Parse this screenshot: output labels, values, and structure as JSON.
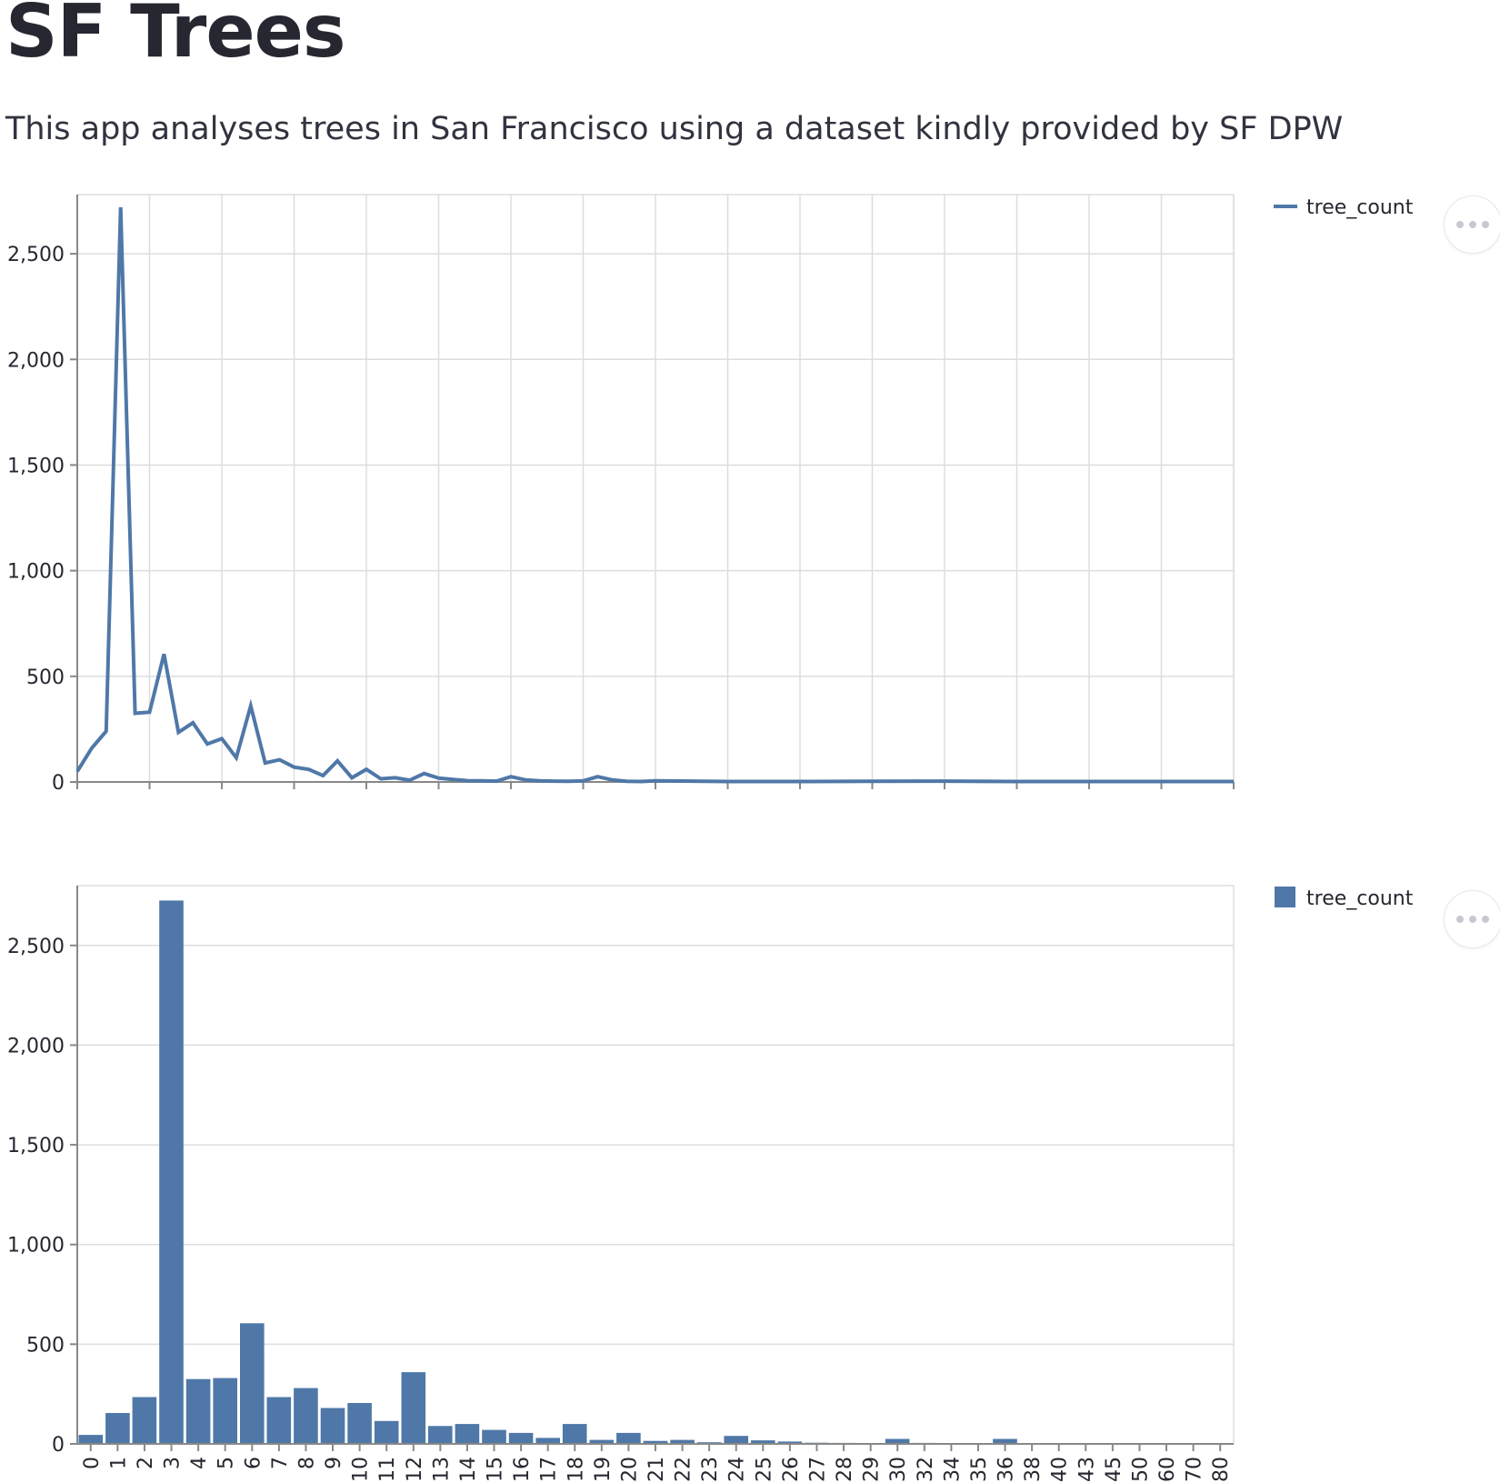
{
  "page": {
    "title": "SF Trees",
    "subtitle": "This app analyses trees in San Francisco using a dataset kindly provided by SF DPW",
    "menu_icon": "ellipsis-icon"
  },
  "colors": {
    "series": "#4f78a8",
    "grid": "#dddddd",
    "axis": "#888888",
    "text": "#262730"
  },
  "chart_data": [
    {
      "type": "line",
      "series": [
        {
          "name": "tree_count",
          "x": [
            0,
            1,
            2,
            3,
            4,
            5,
            6,
            7,
            8,
            9,
            10,
            11,
            12,
            13,
            14,
            15,
            16,
            17,
            18,
            19,
            20,
            21,
            22,
            23,
            24,
            25,
            26,
            27,
            28,
            29,
            30,
            31,
            32,
            33,
            34,
            35,
            36,
            37,
            38,
            39,
            40,
            45,
            50,
            55,
            60,
            65,
            70,
            75,
            80
          ],
          "values": [
            50,
            160,
            240,
            2720,
            325,
            330,
            605,
            235,
            280,
            180,
            205,
            115,
            360,
            90,
            105,
            70,
            60,
            30,
            100,
            20,
            60,
            15,
            20,
            8,
            40,
            18,
            12,
            6,
            5,
            4,
            25,
            10,
            5,
            4,
            3,
            5,
            25,
            10,
            3,
            2,
            5,
            2,
            2,
            3,
            4,
            2,
            2,
            2,
            2
          ]
        }
      ],
      "xlim": [
        0,
        80
      ],
      "ylim": [
        0,
        2780
      ],
      "x_ticks": [
        0,
        5,
        10,
        15,
        20,
        25,
        30,
        35,
        40,
        45,
        50,
        55,
        60,
        65,
        70,
        75,
        80
      ],
      "y_ticks": [
        0,
        500,
        1000,
        1500,
        2000,
        2500
      ],
      "y_tick_labels": [
        "0",
        "500",
        "1,000",
        "1,500",
        "2,000",
        "2,500"
      ],
      "grid": true,
      "legend": "top-right"
    },
    {
      "type": "bar",
      "categories": [
        "0",
        "1",
        "2",
        "3",
        "4",
        "5",
        "6",
        "7",
        "8",
        "9",
        "10",
        "11",
        "12",
        "13",
        "14",
        "15",
        "16",
        "17",
        "18",
        "19",
        "20",
        "21",
        "22",
        "23",
        "24",
        "25",
        "26",
        "27",
        "28",
        "29",
        "30",
        "32",
        "34",
        "35",
        "36",
        "38",
        "40",
        "43",
        "45",
        "50",
        "60",
        "70",
        "80"
      ],
      "series": [
        {
          "name": "tree_count",
          "values": [
            45,
            155,
            235,
            2725,
            325,
            330,
            605,
            235,
            280,
            180,
            205,
            115,
            360,
            90,
            100,
            70,
            55,
            30,
            100,
            20,
            55,
            15,
            20,
            8,
            40,
            18,
            12,
            6,
            5,
            4,
            25,
            5,
            3,
            3,
            25,
            3,
            2,
            2,
            2,
            2,
            2,
            2,
            2
          ]
        }
      ],
      "ylim": [
        0,
        2800
      ],
      "y_ticks": [
        0,
        500,
        1000,
        1500,
        2000,
        2500
      ],
      "y_tick_labels": [
        "0",
        "500",
        "1,000",
        "1,500",
        "2,000",
        "2,500"
      ],
      "grid": true,
      "legend": "top-right"
    }
  ]
}
